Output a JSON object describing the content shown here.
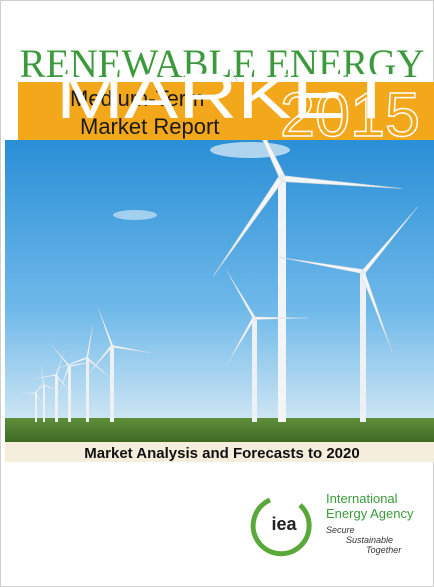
{
  "cover": {
    "series_title": "RENEWABLE ENERGY",
    "subtitle_line1": "Medium-Term",
    "subtitle_line2": "Market Report",
    "year": "2015",
    "overlay": "MARKET",
    "tagline": "Market Analysis and Forecasts to 2020",
    "logo": {
      "mark": "iea",
      "name_line1": "International",
      "name_line2": "Energy Agency",
      "motto": [
        "Secure",
        "Sustainable",
        "Together"
      ]
    }
  }
}
